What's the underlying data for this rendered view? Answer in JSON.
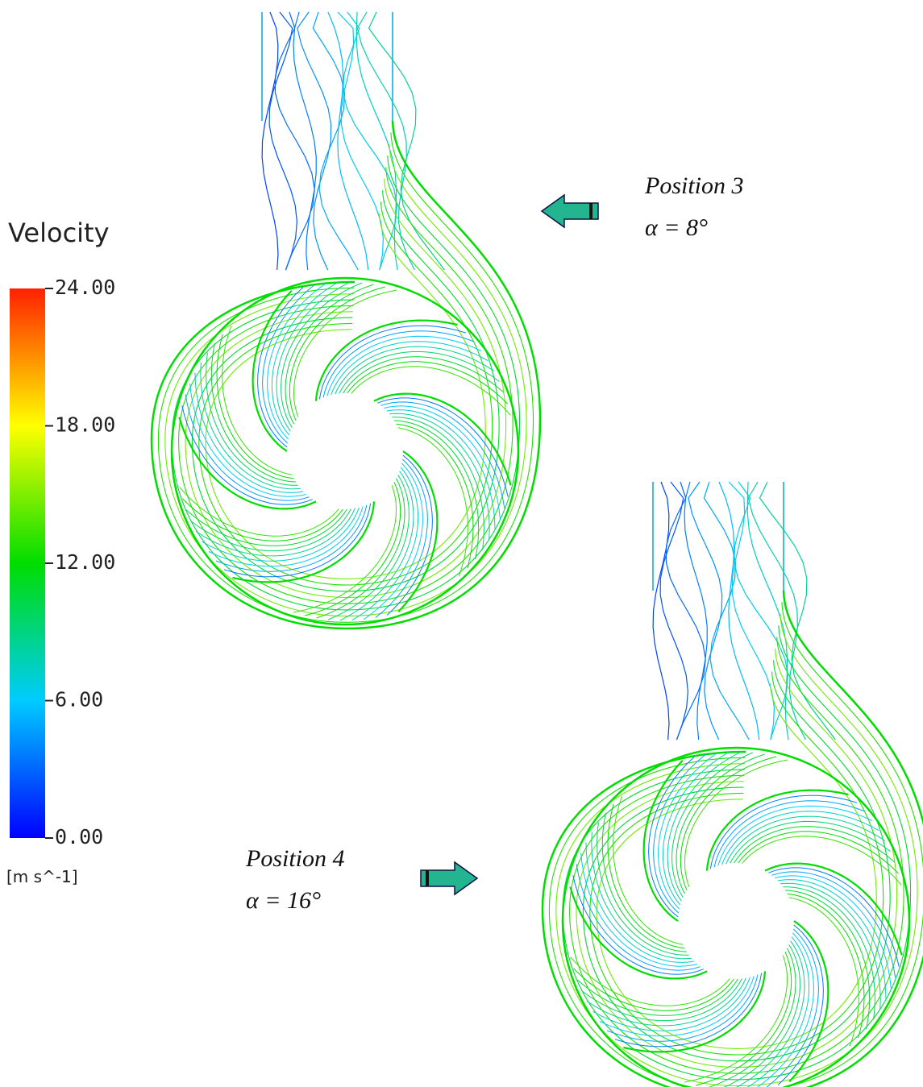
{
  "legend": {
    "title": "Velocity",
    "ticks": [
      {
        "value": 24,
        "label": "24.00"
      },
      {
        "value": 18,
        "label": "18.00"
      },
      {
        "value": 12,
        "label": "12.00"
      },
      {
        "value": 6,
        "label": "6.00"
      },
      {
        "value": 0,
        "label": "0.00"
      }
    ],
    "unit": "[m  s^-1]"
  },
  "panels": [
    {
      "position": "Position  3",
      "angle": "α = 8°"
    },
    {
      "position": "Position  4",
      "angle": "α = 16°"
    }
  ]
}
